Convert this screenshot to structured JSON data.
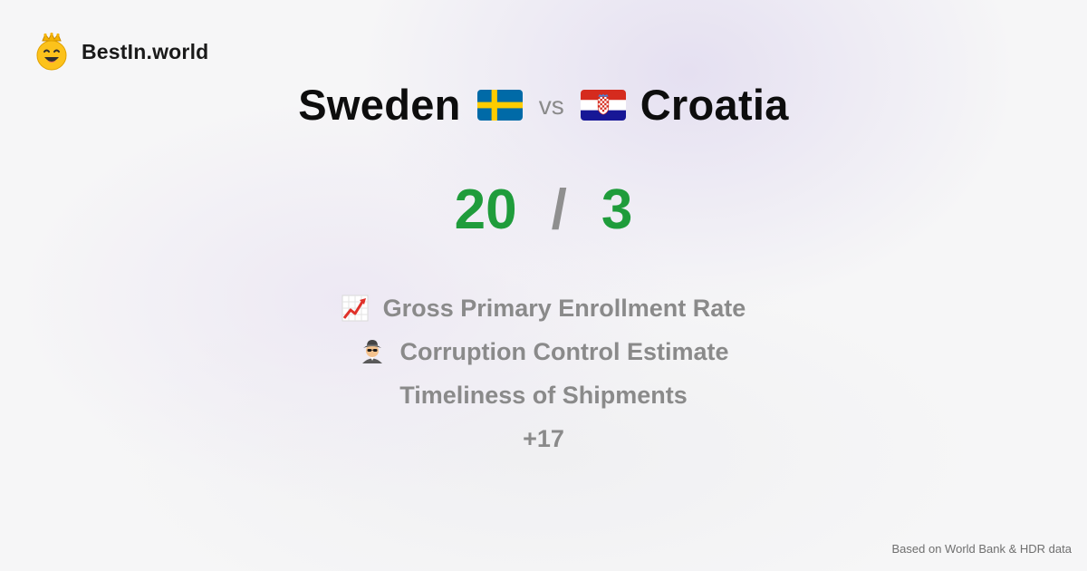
{
  "brand": {
    "name": "BestIn.world",
    "logo_icon": "crowned-smiley-icon"
  },
  "comparison": {
    "left": {
      "name": "Sweden",
      "flag_icon": "sweden-flag-icon"
    },
    "vs_label": "vs",
    "right": {
      "name": "Croatia",
      "flag_icon": "croatia-flag-icon"
    }
  },
  "score": {
    "left": "20",
    "separator": "/",
    "right": "3"
  },
  "metrics": [
    {
      "icon": "chart-increasing-icon",
      "label": "Gross Primary Enrollment Rate"
    },
    {
      "icon": "detective-icon",
      "label": "Corruption Control Estimate"
    },
    {
      "icon": "",
      "label": "Timeliness of Shipments"
    }
  ],
  "more_label": "+17",
  "footer": {
    "source": "Based on World Bank & HDR data"
  },
  "colors": {
    "score": "#1f9c3b",
    "muted": "#8a8a8a",
    "sweden_blue": "#006aa7",
    "sweden_yellow": "#fecc00",
    "croatia_red": "#d52b1e",
    "croatia_blue": "#171796"
  }
}
